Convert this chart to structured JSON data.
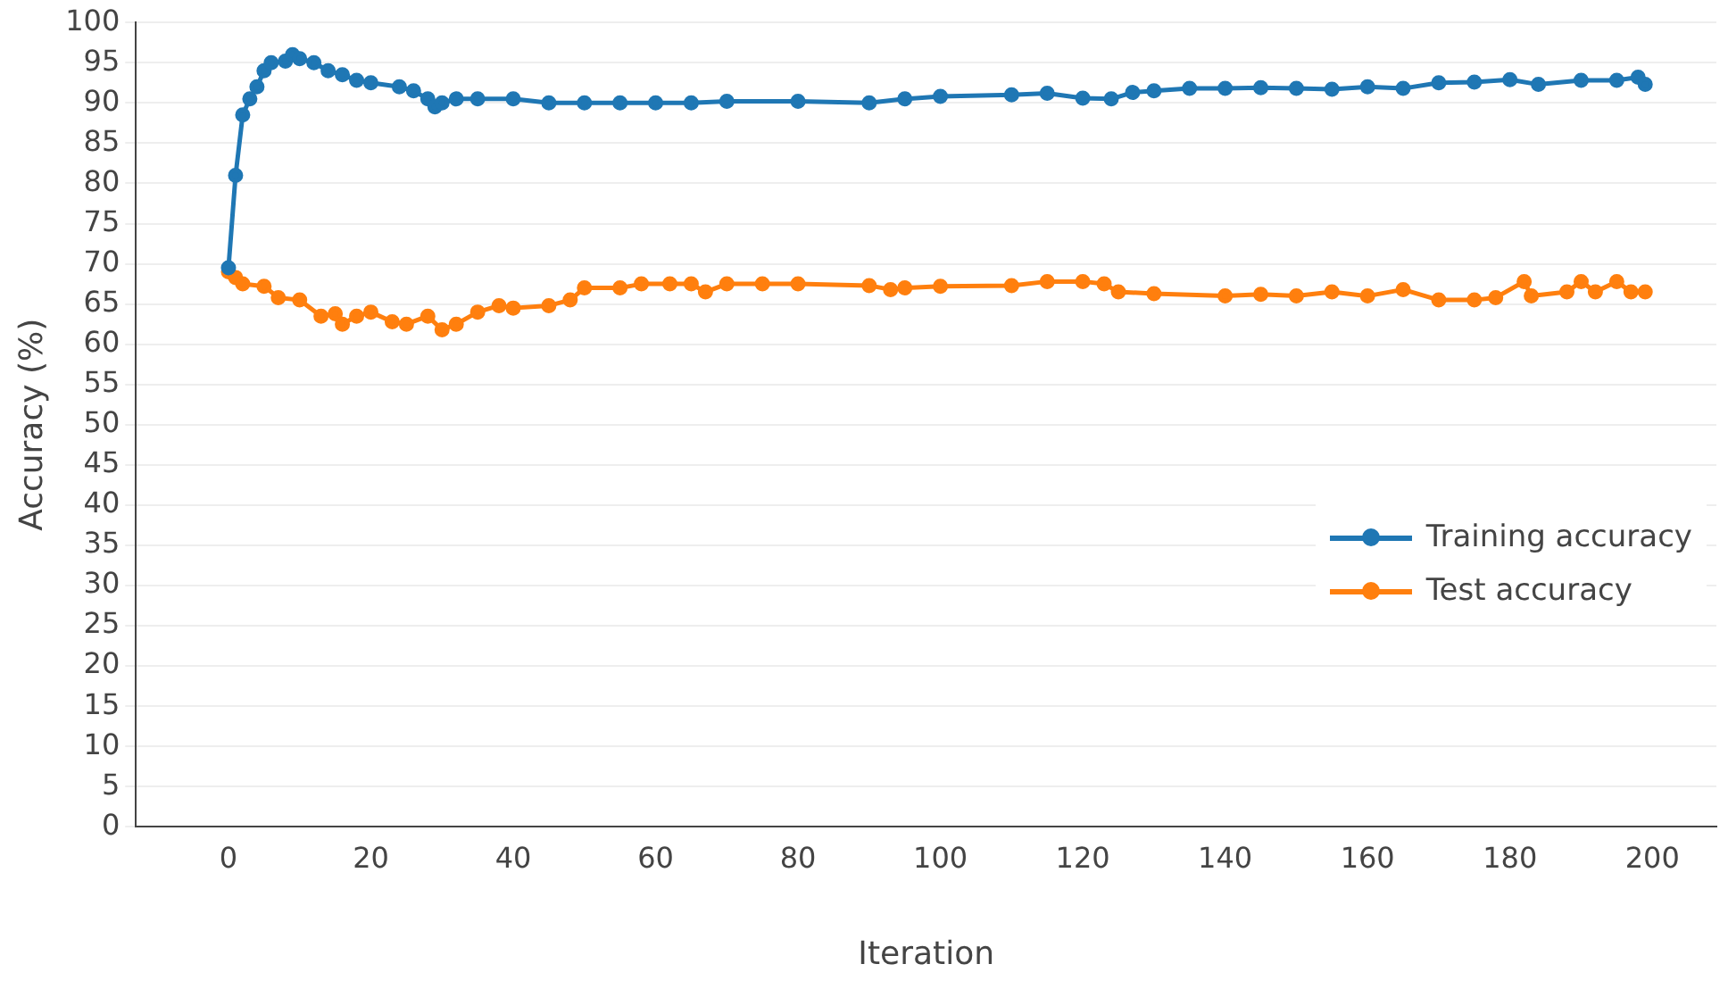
{
  "chart_data": {
    "type": "line",
    "xlabel": "Iteration",
    "ylabel": "Accuracy (%)",
    "xlim": [
      -13,
      209
    ],
    "ylim": [
      0,
      100
    ],
    "xticks": [
      0,
      20,
      40,
      60,
      80,
      100,
      120,
      140,
      160,
      180,
      200
    ],
    "yticks": [
      0,
      5,
      10,
      15,
      20,
      25,
      30,
      35,
      40,
      45,
      50,
      55,
      60,
      65,
      70,
      75,
      80,
      85,
      90,
      95,
      100
    ],
    "grid": "y",
    "legend": "right",
    "marker": "circle",
    "line_style": "solid",
    "series": [
      {
        "name": "Training accuracy",
        "color": "#1f77b4",
        "x": [
          0,
          1,
          2,
          3,
          4,
          5,
          6,
          8,
          9,
          10,
          12,
          14,
          16,
          18,
          20,
          24,
          26,
          28,
          29,
          30,
          32,
          35,
          40,
          45,
          50,
          55,
          60,
          65,
          70,
          80,
          90,
          95,
          100,
          110,
          115,
          120,
          124,
          127,
          130,
          135,
          140,
          145,
          150,
          155,
          160,
          165,
          170,
          175,
          180,
          184,
          190,
          195,
          198,
          199
        ],
        "values": [
          69.5,
          81,
          88.5,
          90.5,
          92,
          94,
          95,
          95.2,
          96,
          95.5,
          95,
          94,
          93.5,
          92.8,
          92.5,
          92,
          91.5,
          90.5,
          89.5,
          90,
          90.5,
          90.5,
          90.5,
          90,
          90,
          90,
          90,
          90,
          90.2,
          90.2,
          90,
          90.5,
          90.8,
          91,
          91.2,
          90.6,
          90.5,
          91.3,
          91.5,
          91.8,
          91.8,
          91.9,
          91.8,
          91.7,
          92,
          91.8,
          92.5,
          92.6,
          92.9,
          92.3,
          92.8,
          92.8,
          93.2,
          92.3
        ]
      },
      {
        "name": "Test accuracy",
        "color": "#ff7f0e",
        "x": [
          0,
          1,
          2,
          5,
          7,
          10,
          13,
          15,
          16,
          18,
          20,
          23,
          25,
          28,
          30,
          32,
          35,
          38,
          40,
          45,
          48,
          50,
          55,
          58,
          62,
          65,
          67,
          70,
          75,
          80,
          90,
          93,
          95,
          100,
          110,
          115,
          120,
          123,
          125,
          130,
          140,
          145,
          150,
          155,
          160,
          165,
          170,
          175,
          178,
          182,
          183,
          188,
          190,
          192,
          195,
          197,
          199
        ],
        "values": [
          69,
          68.3,
          67.5,
          67.2,
          65.8,
          65.5,
          63.5,
          63.8,
          62.5,
          63.5,
          64,
          62.8,
          62.5,
          63.5,
          61.8,
          62.5,
          64,
          64.8,
          64.5,
          64.8,
          65.5,
          67,
          67,
          67.5,
          67.5,
          67.5,
          66.5,
          67.5,
          67.5,
          67.5,
          67.3,
          66.8,
          67,
          67.2,
          67.3,
          67.8,
          67.8,
          67.5,
          66.5,
          66.3,
          66,
          66.2,
          66,
          66.5,
          66,
          66.8,
          65.5,
          65.5,
          65.8,
          67.8,
          66,
          66.5,
          67.8,
          66.5,
          67.8,
          66.5,
          66.5
        ]
      }
    ]
  }
}
